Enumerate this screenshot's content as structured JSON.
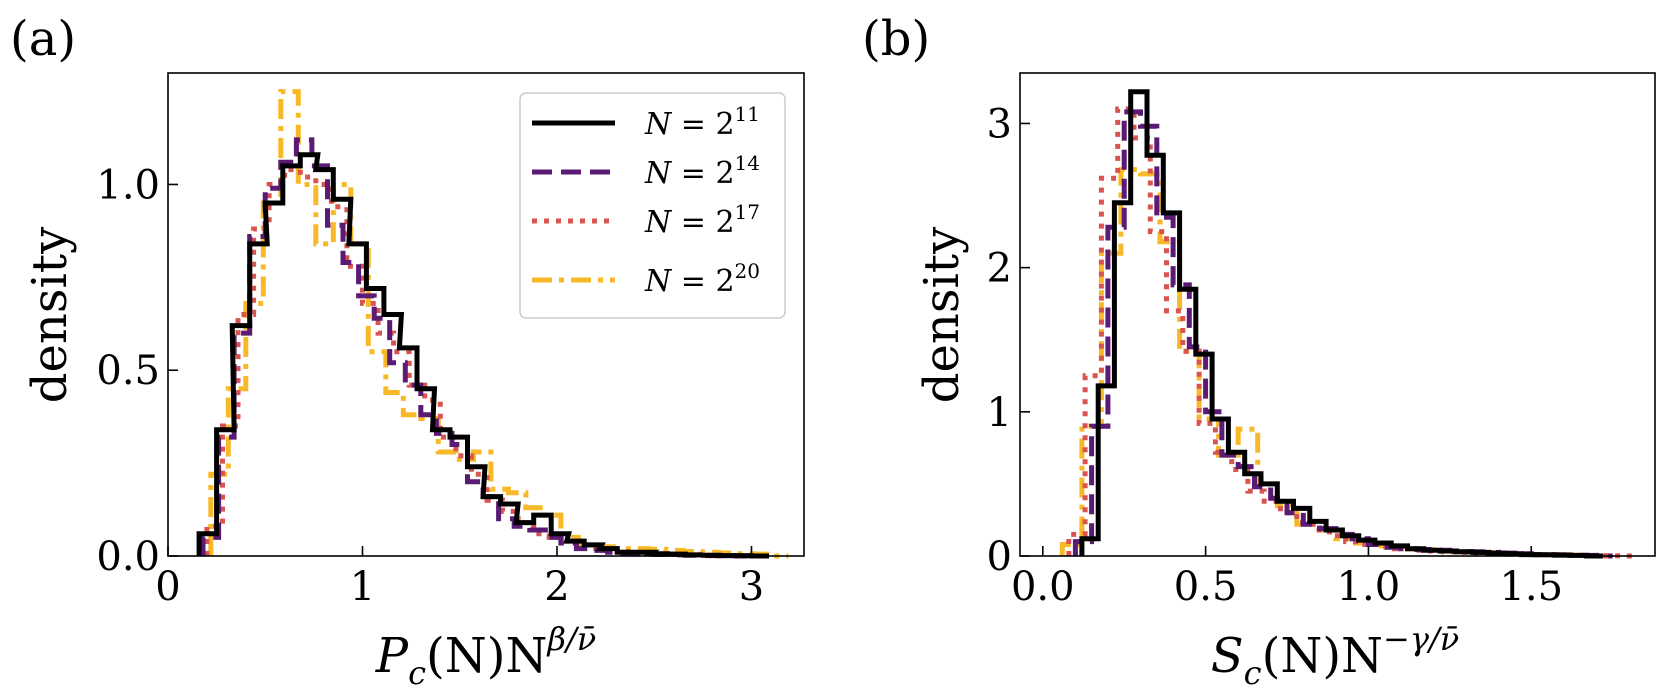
{
  "panels": [
    {
      "panel_label": "(a)",
      "legend_entries": [
        "N = 2^11",
        "N = 2^14",
        "N = 2^17",
        "N = 2^20"
      ]
    },
    {
      "panel_label": "(b)"
    }
  ],
  "legend": {
    "prefix": "N = ",
    "base": "2",
    "exponents": [
      "11",
      "14",
      "17",
      "20"
    ]
  },
  "colors": {
    "N=2^11": "#000000",
    "N=2^14": "#5b1a74",
    "N=2^17": "#d9534f",
    "N=2^20": "#f7b928"
  },
  "chart_data": [
    {
      "type": "histogram-step",
      "title": "",
      "xlabel": "P_c(N) N^{β/ν̄}",
      "xlabel_parts": {
        "base1": "P",
        "sub1": "c",
        "mid": "(N)N",
        "exp": "β/ν̄"
      },
      "ylabel": "density",
      "xlim": [
        0,
        3.27
      ],
      "ylim": [
        0,
        1.3
      ],
      "x_ticks": [
        0,
        1,
        2,
        3
      ],
      "x_tick_labels": [
        "0",
        "1",
        "2",
        "3"
      ],
      "y_ticks": [
        0.0,
        0.5,
        1.0
      ],
      "y_tick_labels": [
        "0.0",
        "0.5",
        "1.0"
      ],
      "legend_position": "top-right",
      "series": [
        {
          "name": "N = 2^11",
          "style": "solid",
          "x": [
            0.16,
            0.25,
            0.33,
            0.42,
            0.5,
            0.59,
            0.68,
            0.76,
            0.85,
            0.93,
            1.02,
            1.11,
            1.19,
            1.28,
            1.36,
            1.45,
            1.54,
            1.62,
            1.71,
            1.79,
            1.88,
            1.97,
            2.05,
            2.14,
            2.22,
            2.31,
            2.4,
            2.48,
            2.57,
            2.66,
            2.74,
            2.83,
            2.91,
            3.0
          ],
          "values": [
            0.06,
            0.34,
            0.62,
            0.84,
            0.95,
            1.05,
            1.08,
            1.04,
            0.96,
            0.84,
            0.72,
            0.65,
            0.56,
            0.45,
            0.34,
            0.32,
            0.24,
            0.16,
            0.14,
            0.09,
            0.11,
            0.06,
            0.04,
            0.03,
            0.02,
            0.01,
            0.01,
            0.006,
            0.005,
            0.003,
            0.002,
            0.001,
            0.001,
            0.0
          ]
        },
        {
          "name": "N = 2^14",
          "style": "dashed",
          "x": [
            0.18,
            0.26,
            0.34,
            0.42,
            0.5,
            0.58,
            0.66,
            0.74,
            0.82,
            0.9,
            0.98,
            1.06,
            1.14,
            1.22,
            1.3,
            1.38,
            1.46,
            1.54,
            1.62,
            1.7,
            1.78,
            1.86,
            1.94,
            2.02,
            2.1,
            2.18,
            2.26,
            2.34,
            2.42,
            2.5,
            2.58,
            2.66,
            2.74,
            2.82,
            2.9
          ],
          "values": [
            0.05,
            0.32,
            0.6,
            0.86,
            0.99,
            1.06,
            1.12,
            1.05,
            0.89,
            0.79,
            0.7,
            0.64,
            0.52,
            0.46,
            0.38,
            0.33,
            0.3,
            0.2,
            0.16,
            0.1,
            0.08,
            0.07,
            0.05,
            0.035,
            0.02,
            0.015,
            0.01,
            0.008,
            0.005,
            0.004,
            0.003,
            0.002,
            0.001,
            0.001,
            0.0
          ]
        },
        {
          "name": "N = 2^17",
          "style": "dotted",
          "x": [
            0.2,
            0.28,
            0.36,
            0.44,
            0.52,
            0.6,
            0.68,
            0.76,
            0.84,
            0.92,
            1.0,
            1.08,
            1.16,
            1.24,
            1.32,
            1.4,
            1.48,
            1.56,
            1.64,
            1.72,
            1.8,
            1.88,
            1.96,
            2.04,
            2.12,
            2.2,
            2.28,
            2.36,
            2.44,
            2.52,
            2.6,
            2.68,
            2.76,
            2.84,
            2.92
          ],
          "values": [
            0.08,
            0.35,
            0.65,
            0.88,
            1.0,
            1.04,
            1.02,
            1.0,
            0.94,
            0.78,
            0.68,
            0.6,
            0.55,
            0.46,
            0.42,
            0.32,
            0.27,
            0.22,
            0.15,
            0.12,
            0.09,
            0.06,
            0.05,
            0.04,
            0.03,
            0.02,
            0.012,
            0.01,
            0.007,
            0.005,
            0.004,
            0.003,
            0.002,
            0.001,
            0.0
          ]
        },
        {
          "name": "N = 2^20",
          "style": "dashdot",
          "x": [
            0.22,
            0.31,
            0.4,
            0.49,
            0.58,
            0.67,
            0.76,
            0.85,
            0.94,
            1.03,
            1.12,
            1.21,
            1.3,
            1.39,
            1.48,
            1.57,
            1.66,
            1.75,
            1.84,
            1.93,
            2.02,
            2.11,
            2.2,
            2.29,
            2.38,
            2.47,
            2.56,
            2.65,
            2.74,
            2.83,
            2.92,
            3.01,
            3.1
          ],
          "values": [
            0.22,
            0.45,
            0.68,
            0.95,
            1.25,
            1.0,
            0.84,
            1.0,
            0.84,
            0.55,
            0.44,
            0.38,
            0.37,
            0.28,
            0.26,
            0.28,
            0.18,
            0.17,
            0.13,
            0.11,
            0.05,
            0.03,
            0.025,
            0.02,
            0.02,
            0.018,
            0.015,
            0.012,
            0.01,
            0.008,
            0.006,
            0.005,
            0.0
          ]
        }
      ]
    },
    {
      "type": "histogram-step",
      "title": "",
      "xlabel": "S_c(N) N^{-γ/ν̄}",
      "xlabel_parts": {
        "base1": "S",
        "sub1": "c",
        "mid": "(N)N",
        "exp": "−γ/ν̄"
      },
      "ylabel": "density",
      "xlim": [
        -0.07,
        1.88
      ],
      "ylim": [
        0,
        3.35
      ],
      "x_ticks": [
        0.0,
        0.5,
        1.0,
        1.5
      ],
      "x_tick_labels": [
        "0.0",
        "0.5",
        "1.0",
        "1.5"
      ],
      "y_ticks": [
        0,
        1,
        2,
        3
      ],
      "y_tick_labels": [
        "0",
        "1",
        "2",
        "3"
      ],
      "legend_position": "none",
      "series": [
        {
          "name": "N = 2^11",
          "style": "solid",
          "x": [
            0.12,
            0.17,
            0.22,
            0.27,
            0.32,
            0.37,
            0.42,
            0.47,
            0.52,
            0.57,
            0.62,
            0.67,
            0.72,
            0.77,
            0.82,
            0.87,
            0.92,
            0.97,
            1.02,
            1.07,
            1.12,
            1.17,
            1.22,
            1.27,
            1.32,
            1.37,
            1.42,
            1.47,
            1.52,
            1.57,
            1.62,
            1.67
          ],
          "values": [
            0.12,
            1.18,
            2.45,
            3.22,
            2.78,
            2.38,
            1.85,
            1.4,
            0.95,
            0.72,
            0.57,
            0.5,
            0.38,
            0.33,
            0.24,
            0.18,
            0.14,
            0.11,
            0.09,
            0.07,
            0.05,
            0.04,
            0.035,
            0.03,
            0.025,
            0.02,
            0.015,
            0.01,
            0.008,
            0.006,
            0.004,
            0.0
          ]
        },
        {
          "name": "N = 2^14",
          "style": "dashed",
          "x": [
            0.1,
            0.15,
            0.2,
            0.25,
            0.3,
            0.35,
            0.4,
            0.45,
            0.5,
            0.55,
            0.6,
            0.65,
            0.7,
            0.75,
            0.8,
            0.85,
            0.9,
            0.95,
            1.0,
            1.05,
            1.1,
            1.15,
            1.2,
            1.25,
            1.3,
            1.35,
            1.4,
            1.45,
            1.5,
            1.55,
            1.6,
            1.65,
            1.7
          ],
          "values": [
            0.1,
            0.9,
            2.28,
            3.08,
            2.98,
            2.35,
            1.88,
            1.45,
            1.0,
            0.7,
            0.62,
            0.48,
            0.4,
            0.3,
            0.22,
            0.19,
            0.15,
            0.12,
            0.08,
            0.06,
            0.05,
            0.045,
            0.04,
            0.035,
            0.03,
            0.025,
            0.02,
            0.015,
            0.01,
            0.008,
            0.006,
            0.004,
            0.0
          ]
        },
        {
          "name": "N = 2^17",
          "style": "dotted",
          "x": [
            0.08,
            0.13,
            0.18,
            0.23,
            0.28,
            0.33,
            0.38,
            0.43,
            0.48,
            0.53,
            0.58,
            0.63,
            0.68,
            0.73,
            0.78,
            0.83,
            0.88,
            0.93,
            0.98,
            1.03,
            1.08,
            1.13,
            1.18,
            1.23,
            1.28,
            1.33,
            1.38,
            1.43,
            1.48,
            1.53,
            1.58,
            1.63,
            1.68,
            1.73,
            1.78
          ],
          "values": [
            0.15,
            1.25,
            2.62,
            3.1,
            2.9,
            2.25,
            1.7,
            1.42,
            0.92,
            0.72,
            0.6,
            0.45,
            0.38,
            0.3,
            0.23,
            0.18,
            0.14,
            0.1,
            0.08,
            0.06,
            0.05,
            0.04,
            0.035,
            0.03,
            0.025,
            0.02,
            0.015,
            0.012,
            0.01,
            0.008,
            0.006,
            0.004,
            0.003,
            0.002,
            0.0
          ]
        },
        {
          "name": "N = 2^20",
          "style": "dashdot",
          "x": [
            0.06,
            0.12,
            0.18,
            0.24,
            0.3,
            0.36,
            0.42,
            0.48,
            0.54,
            0.6,
            0.66,
            0.72,
            0.78,
            0.84,
            0.9,
            0.96,
            1.02,
            1.08,
            1.14,
            1.2,
            1.26,
            1.32,
            1.38,
            1.44,
            1.5,
            1.56,
            1.62,
            1.68
          ],
          "values": [
            0.08,
            0.9,
            2.1,
            2.68,
            2.65,
            2.18,
            1.42,
            0.95,
            0.7,
            0.88,
            0.5,
            0.35,
            0.22,
            0.18,
            0.12,
            0.09,
            0.07,
            0.06,
            0.045,
            0.035,
            0.03,
            0.025,
            0.02,
            0.015,
            0.01,
            0.008,
            0.005,
            0.0
          ]
        }
      ]
    }
  ]
}
